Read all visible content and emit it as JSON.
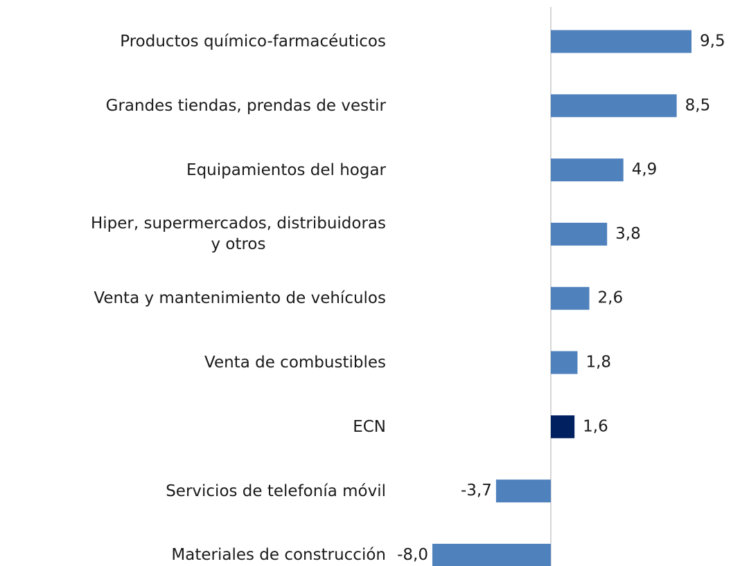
{
  "chart_data": {
    "type": "barh",
    "categories": [
      "Productos químico-farmacéuticos",
      "Grandes tiendas, prendas de vestir",
      "Equipamientos del hogar",
      "Hiper, supermercados, distribuidoras\ny otros",
      "Venta y mantenimiento de vehículos",
      "Venta de combustibles",
      "ECN",
      "Servicios de telefonía móvil",
      "Materiales de construcción"
    ],
    "values": [
      9.5,
      8.5,
      4.9,
      3.8,
      2.6,
      1.8,
      1.6,
      -3.7,
      -8.0
    ],
    "value_labels": [
      "9,5",
      "8,5",
      "4,9",
      "3,8",
      "2,6",
      "1,8",
      "1,6",
      "-3,7",
      "-8,0"
    ],
    "colors": [
      "#4f81bd",
      "#4f81bd",
      "#4f81bd",
      "#4f81bd",
      "#4f81bd",
      "#4f81bd",
      "#002060",
      "#4f81bd",
      "#4f81bd"
    ],
    "xlim": [
      -8.0,
      9.5
    ]
  }
}
